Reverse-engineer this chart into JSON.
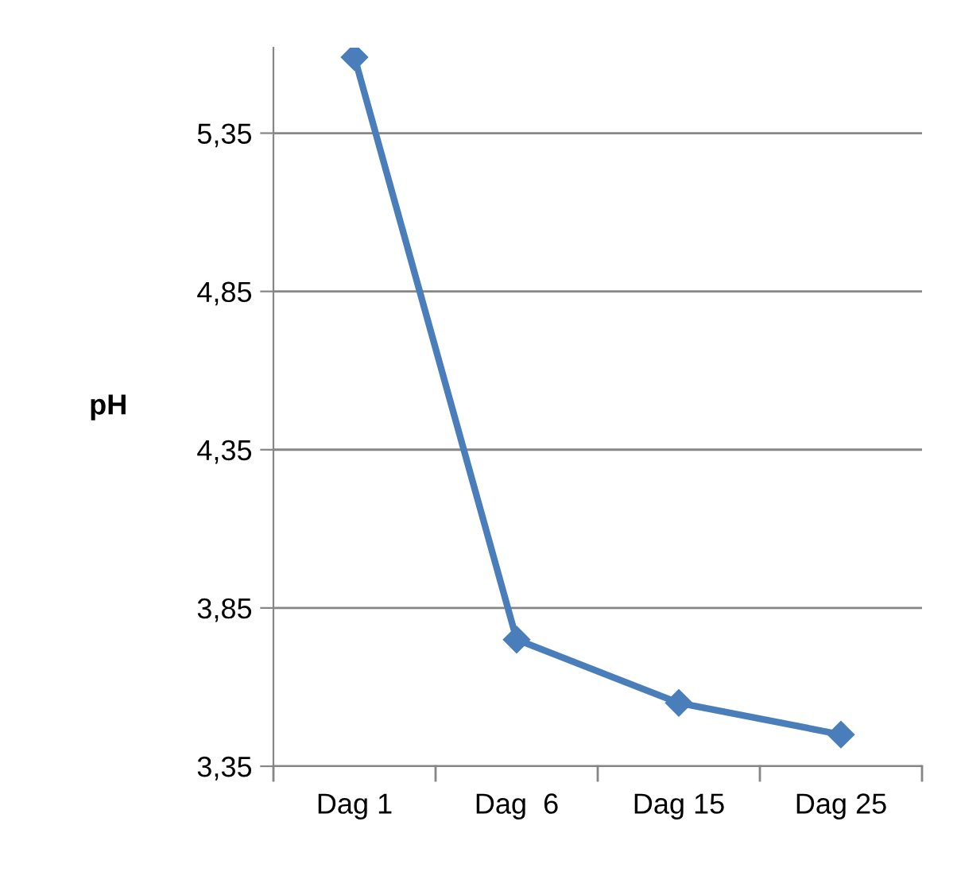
{
  "chart_data": {
    "type": "line",
    "ylabel": "pH",
    "categories": [
      "Dag 1",
      "Dag  6",
      "Dag 15",
      "Dag 25"
    ],
    "series": [
      {
        "color": "#4a7ebb",
        "values": [
          5.59,
          3.75,
          3.55,
          3.45
        ]
      }
    ],
    "ylim": [
      3.35,
      5.62
    ],
    "yticks": [
      {
        "value": 3.35,
        "label": "3,35"
      },
      {
        "value": 3.85,
        "label": "3,85"
      },
      {
        "value": 4.35,
        "label": "4,35"
      },
      {
        "value": 4.85,
        "label": "4,85"
      },
      {
        "value": 5.35,
        "label": "5,35"
      }
    ],
    "grid": "y",
    "marker": "diamond",
    "line_style": "solid"
  }
}
